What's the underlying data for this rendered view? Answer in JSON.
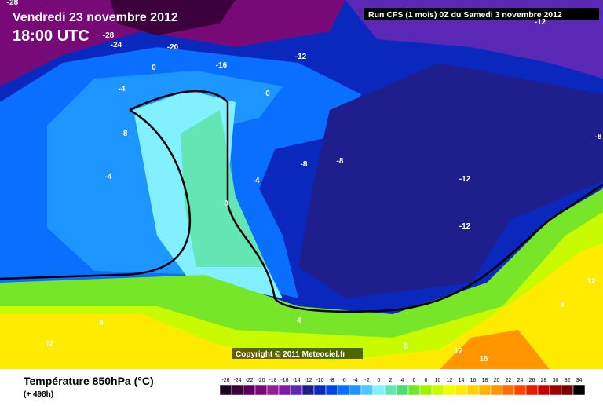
{
  "header": {
    "title": "Vendredi 23 novembre 2012",
    "time": "18:00 UTC",
    "run": "Run CFS (1 mois) 0Z du Samedi 3 novembre 2012"
  },
  "copyright": "Copyright © 2011 Meteociel.fr",
  "contour_labels": [
    -28,
    -24,
    -20,
    -16,
    -12,
    0,
    -4,
    0,
    -8,
    -4,
    -8,
    -8,
    -4,
    0,
    -12,
    -12,
    -8,
    -12,
    12,
    8,
    4,
    8,
    12,
    8,
    12,
    16,
    -28
  ],
  "legend": {
    "title": "Température 850hPa (°C)",
    "subtitle": "(+ 498h)",
    "ticks": [
      -26,
      -24,
      -22,
      -20,
      -18,
      -16,
      -14,
      -12,
      -10,
      -8,
      -6,
      -4,
      -2,
      0,
      2,
      4,
      6,
      8,
      10,
      12,
      14,
      16,
      18,
      20,
      22,
      24,
      26,
      28,
      30,
      32,
      34
    ],
    "colors": [
      "#200020",
      "#3c003c",
      "#5a005a",
      "#780a78",
      "#961e96",
      "#7a1ea0",
      "#5a28b4",
      "#1e1e8c",
      "#0a28be",
      "#0046e6",
      "#0a6eff",
      "#1e96ff",
      "#50c8ff",
      "#82f0ff",
      "#64e6b4",
      "#50dc78",
      "#78e628",
      "#a0f000",
      "#c8fa00",
      "#f0ff00",
      "#ffeb00",
      "#ffd200",
      "#ffb400",
      "#ff9600",
      "#ff6e00",
      "#ff4600",
      "#e61e00",
      "#c80000",
      "#a00000",
      "#780000",
      "#000000"
    ]
  }
}
